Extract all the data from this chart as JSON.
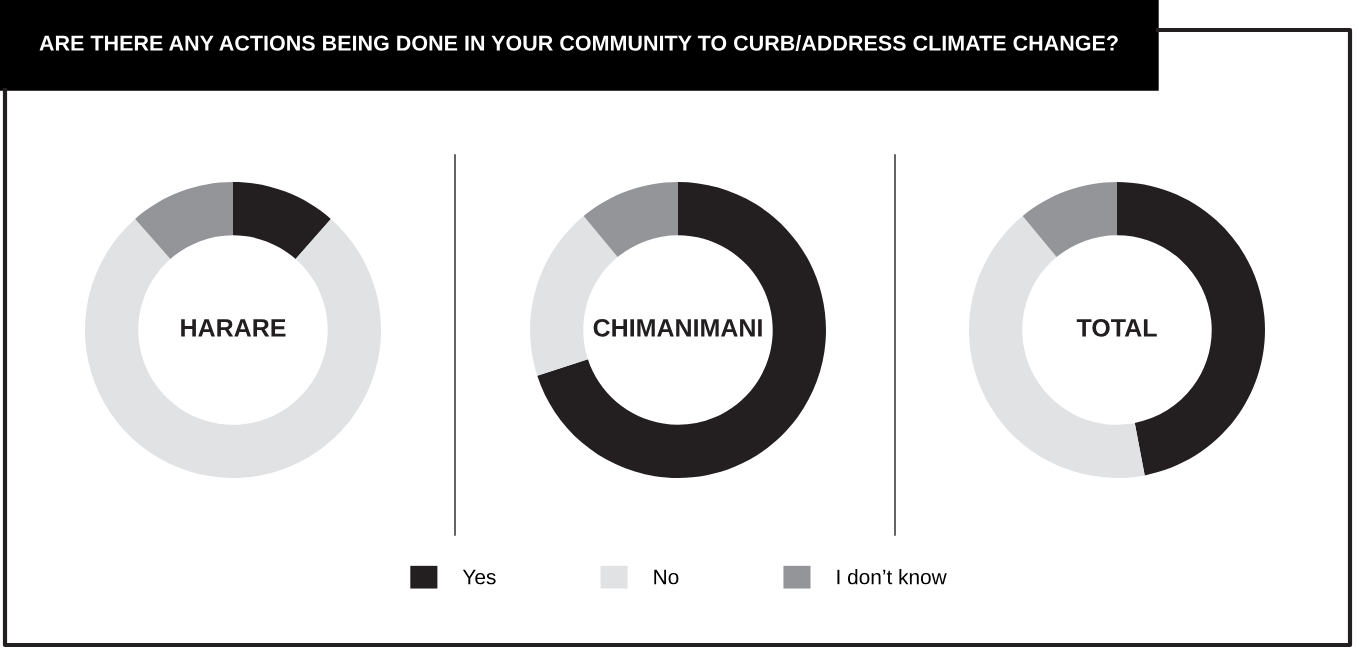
{
  "chart_data": [
    {
      "type": "donut",
      "title": "ARE THERE ANY ACTIONS BEING DONE IN YOUR COMMUNITY TO CURB/ADDRESS CLIMATE CHANGE?",
      "annotations": [
        "HARARE"
      ],
      "categories": [
        "Yes",
        "No",
        "I don’t know"
      ],
      "values": [
        11.5,
        77,
        11.5
      ],
      "colors": [
        "#231f20",
        "#e1e2e3",
        "#939598"
      ],
      "legend": "bottom"
    },
    {
      "type": "donut",
      "annotations": [
        "CHIMANIMANI"
      ],
      "values": [
        70,
        19,
        11
      ],
      "colors": [
        "#231f20",
        "#e1e2e3",
        "#939598"
      ]
    },
    {
      "type": "donut",
      "annotations": [
        "TOTAL"
      ],
      "values": [
        47,
        42,
        11
      ],
      "colors": [
        "#231f20",
        "#e1e2e3",
        "#939598"
      ]
    }
  ]
}
